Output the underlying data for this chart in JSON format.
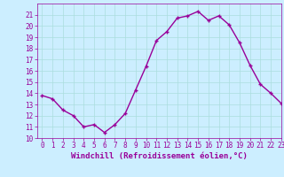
{
  "x": [
    0,
    1,
    2,
    3,
    4,
    5,
    6,
    7,
    8,
    9,
    10,
    11,
    12,
    13,
    14,
    15,
    16,
    17,
    18,
    19,
    20,
    21,
    22,
    23
  ],
  "y": [
    13.8,
    13.5,
    12.5,
    12.0,
    11.0,
    11.2,
    10.5,
    11.2,
    12.2,
    14.3,
    16.4,
    18.7,
    19.5,
    20.7,
    20.9,
    21.3,
    20.5,
    20.9,
    20.1,
    18.5,
    16.5,
    14.8,
    14.0,
    13.1
  ],
  "line_color": "#990099",
  "marker": "+",
  "marker_size": 3,
  "bg_color": "#cceeff",
  "grid_color": "#aadddd",
  "xlabel": "Windchill (Refroidissement éolien,°C)",
  "xlabel_fontsize": 6.5,
  "ylim": [
    10,
    22
  ],
  "xlim": [
    -0.5,
    23
  ],
  "yticks": [
    10,
    11,
    12,
    13,
    14,
    15,
    16,
    17,
    18,
    19,
    20,
    21
  ],
  "xticks": [
    0,
    1,
    2,
    3,
    4,
    5,
    6,
    7,
    8,
    9,
    10,
    11,
    12,
    13,
    14,
    15,
    16,
    17,
    18,
    19,
    20,
    21,
    22,
    23
  ],
  "tick_fontsize": 5.5,
  "line_width": 1.0,
  "marker_edge_width": 1.0
}
